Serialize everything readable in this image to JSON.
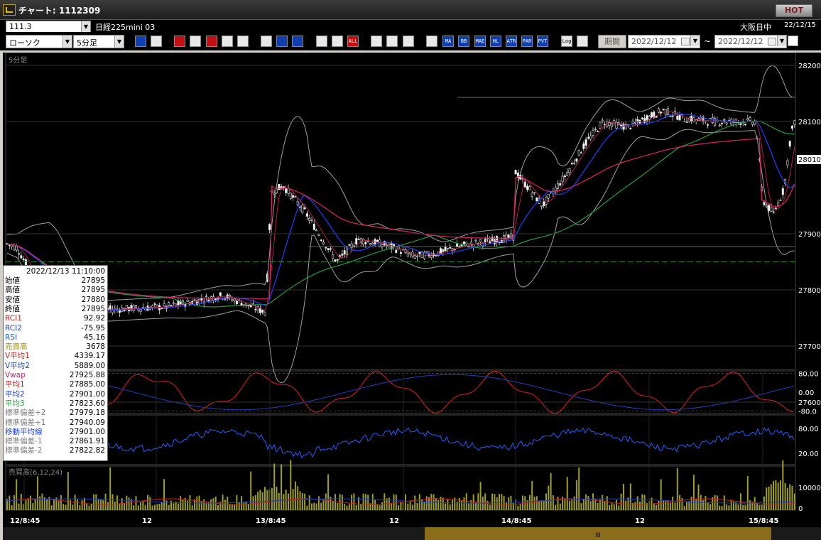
{
  "window": {
    "title": "チャート: 1112309",
    "hot_label": "HOT"
  },
  "header": {
    "code": "111.3",
    "instrument": "日経225mini 03",
    "session": "大阪日中",
    "date": "22/12/15"
  },
  "toolbar": {
    "chart_type": "ローソク",
    "interval": "5分足",
    "buttons": [
      "zoom",
      "cross",
      "compare",
      "mark",
      "label",
      "trend",
      "undo",
      "clear",
      "pen",
      "cursor",
      "pointer",
      "buy",
      "sell",
      "all",
      "settings",
      "tools",
      "color",
      "tbl",
      "MA",
      "BB",
      "MAE",
      "HL",
      "ATR",
      "PAR",
      "PVT",
      "Log",
      "exit"
    ],
    "period_label": "期間",
    "date_from": "2022/12/12",
    "date_to": "2022/12/12",
    "range_sep": "~"
  },
  "chart": {
    "interval_label": "5分足",
    "volume_label": "売買高(6,12,24)",
    "price_axis": [
      "28200",
      "28100",
      "27900",
      "27800",
      "27700",
      "27600"
    ],
    "current_price": "28010",
    "osc_axis": [
      "80.00",
      "0.00",
      "-80.0"
    ],
    "rsi_axis": [
      "80.00",
      "20.00"
    ],
    "vol_axis": [
      "10000",
      "0"
    ],
    "x_axis": [
      "12/8:45",
      "12",
      "13/8:45",
      "12",
      "14/8:45",
      "12",
      "15/8:45"
    ],
    "scroll_label": "III",
    "colors": {
      "candle_up": "#ffffff",
      "sma1": "#e0206a",
      "sma2": "#2040ff",
      "sma3": "#20a040",
      "bollinger": "#a0a0a0",
      "rci1": "#e02020",
      "rci2": "#2040c0",
      "rsi": "#2060ff",
      "volume": "#a0a020"
    }
  },
  "info": {
    "timestamp": "2022/12/13  11:10:00",
    "rows": [
      {
        "label": "始値",
        "value": "27895",
        "color": "#000000"
      },
      {
        "label": "高値",
        "value": "27895",
        "color": "#000000"
      },
      {
        "label": "安値",
        "value": "27880",
        "color": "#000000"
      },
      {
        "label": "終値",
        "value": "27895",
        "color": "#000000"
      },
      {
        "label": "RCI1",
        "value": "92.92",
        "color": "#d02020"
      },
      {
        "label": "RCI2",
        "value": "-75.95",
        "color": "#2040c0"
      },
      {
        "label": "RSI",
        "value": "45.16",
        "color": "#2060ff"
      },
      {
        "label": "売買高",
        "value": "3678",
        "color": "#a09000"
      },
      {
        "label": "V平均1",
        "value": "4339.17",
        "color": "#d02020"
      },
      {
        "label": "V平均2",
        "value": "5889.00",
        "color": "#2040c0"
      },
      {
        "label": "Vwap",
        "value": "27925.88",
        "color": "#d02060"
      },
      {
        "label": "平均1",
        "value": "27885.00",
        "color": "#d02020"
      },
      {
        "label": "平均2",
        "value": "27901.00",
        "color": "#2040ff"
      },
      {
        "label": "平均3",
        "value": "27823.60",
        "color": "#20a040"
      },
      {
        "label": "標準偏差+2",
        "value": "27979.18",
        "color": "#808080"
      },
      {
        "label": "標準偏差+1",
        "value": "27940.09",
        "color": "#808080"
      },
      {
        "label": "移動平均線",
        "value": "27901.00",
        "color": "#2040ff"
      },
      {
        "label": "標準偏差-1",
        "value": "27861.91",
        "color": "#808080"
      },
      {
        "label": "標準偏差-2",
        "value": "27822.82",
        "color": "#808080"
      }
    ]
  }
}
